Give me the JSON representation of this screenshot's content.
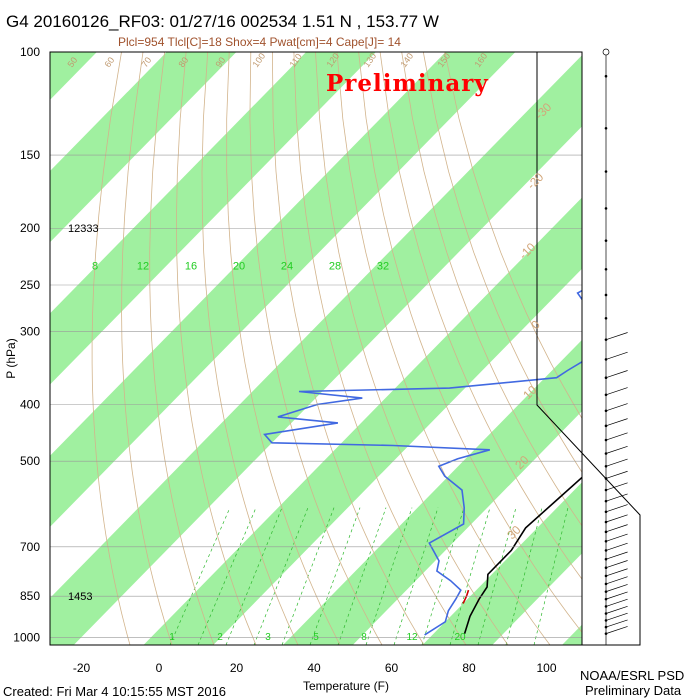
{
  "header": {
    "title": "G4 20160126_RF03: 01/27/16 002534   1.51 N , 153.77 W",
    "subtitle": "Plcl=954 Tlcl[C]=18 Shox=4 Pwat[cm]=4 Cape[J]= 14",
    "watermark": "Preliminary"
  },
  "footer": {
    "created": "Created: Fri Mar  4 10:15:55 MST 2016",
    "credit_line1": "NOAA/ESRL PSD",
    "credit_line2": "Preliminary Data"
  },
  "chart_data": {
    "type": "line",
    "title": "G4 20160126_RF03: 01/27/16 002534   1.51 N , 153.77 W",
    "xlabel": "Temperature (F)",
    "ylabel": "P (hPa)",
    "xlim": [
      -28,
      100
    ],
    "ylim": [
      1030,
      100
    ],
    "y_scale": "log",
    "x_ticks": [
      -20,
      0,
      20,
      40,
      60,
      80,
      100
    ],
    "y_ticks": [
      100,
      150,
      200,
      250,
      300,
      400,
      500,
      700,
      850,
      1000
    ],
    "height_labels": [
      {
        "p": 200,
        "text": "12333"
      },
      {
        "p": 850,
        "text": "1453"
      }
    ],
    "mixing_ratio_labels": [
      "8",
      "12",
      "16",
      "20",
      "24",
      "28",
      "32"
    ],
    "lower_mixing_ratio_labels": [
      "1",
      "2",
      "3",
      "5",
      "8",
      "12",
      "20"
    ],
    "isotherm_labels_c": [
      "-30",
      "-20",
      "-10",
      "0",
      "10",
      "20",
      "30"
    ],
    "dry_adiabat_labels": [
      "50",
      "60",
      "70",
      "80",
      "90",
      "100",
      "110",
      "120",
      "130",
      "140",
      "150",
      "160"
    ],
    "series": [
      {
        "name": "Temperature",
        "color": "#000000",
        "points": [
          [
            28,
            185
          ],
          [
            31,
            200
          ],
          [
            35,
            222
          ],
          [
            40,
            250
          ],
          [
            45,
            280
          ],
          [
            49,
            305
          ],
          [
            53,
            335
          ],
          [
            57,
            360
          ],
          [
            60,
            385
          ],
          [
            62,
            405
          ],
          [
            63,
            440
          ],
          [
            62,
            465
          ],
          [
            64,
            490
          ],
          [
            67,
            520
          ],
          [
            66,
            580
          ],
          [
            65,
            650
          ],
          [
            67,
            710
          ],
          [
            67,
            780
          ],
          [
            70,
            820
          ],
          [
            71,
            860
          ],
          [
            73,
            920
          ],
          [
            76,
            985
          ]
        ]
      },
      {
        "name": "Dewpoint",
        "color": "#4169e1",
        "points": [
          [
            8,
            200
          ],
          [
            14,
            210
          ],
          [
            20,
            225
          ],
          [
            22,
            245
          ],
          [
            19,
            258
          ],
          [
            24,
            270
          ],
          [
            32,
            285
          ],
          [
            40,
            300
          ],
          [
            42,
            320
          ],
          [
            38,
            335
          ],
          [
            36,
            350
          ],
          [
            35,
            360
          ],
          [
            10,
            375
          ],
          [
            -28,
            380
          ],
          [
            -10,
            390
          ],
          [
            -20,
            400
          ],
          [
            -27,
            420
          ],
          [
            -10,
            430
          ],
          [
            -26,
            450
          ],
          [
            -22,
            465
          ],
          [
            10,
            470
          ],
          [
            36,
            478
          ],
          [
            30,
            495
          ],
          [
            27,
            510
          ],
          [
            31,
            530
          ],
          [
            39,
            560
          ],
          [
            44,
            600
          ],
          [
            48,
            640
          ],
          [
            44,
            690
          ],
          [
            51,
            740
          ],
          [
            53,
            770
          ],
          [
            59,
            800
          ],
          [
            64,
            830
          ],
          [
            65,
            860
          ],
          [
            66,
            900
          ],
          [
            68,
            940
          ],
          [
            66,
            990
          ]
        ]
      },
      {
        "name": "Parcel",
        "color": "#cc0000",
        "points": [
          [
            66,
            830
          ],
          [
            67,
            850
          ],
          [
            68,
            875
          ]
        ]
      }
    ],
    "wind_barbs": {
      "pressure_range": [
        100,
        1000
      ]
    }
  }
}
